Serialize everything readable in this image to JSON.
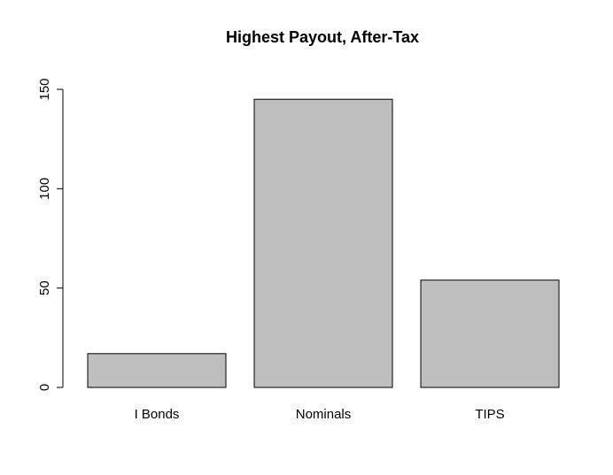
{
  "chart_data": {
    "type": "bar",
    "title": "Highest Payout, After-Tax",
    "xlabel": "",
    "ylabel": "",
    "categories": [
      "I Bonds",
      "Nominals",
      "TIPS"
    ],
    "values": [
      17,
      145,
      54
    ],
    "ylim": [
      0,
      150
    ],
    "yticks": [
      0,
      50,
      100,
      150
    ],
    "grid": false,
    "bar_color": "#bebebe"
  }
}
